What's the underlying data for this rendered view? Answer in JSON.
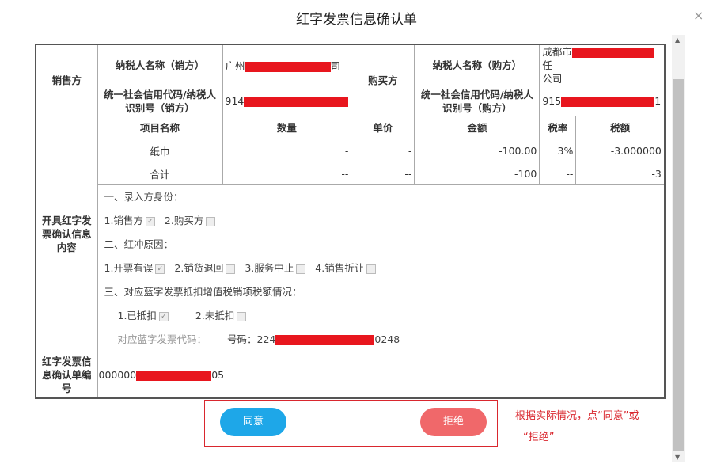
{
  "dialog": {
    "title": "红字发票信息确认单",
    "close": "×"
  },
  "seller": {
    "section": "销售方",
    "name_label": "纳税人名称（销方）",
    "name_prefix": "广州",
    "name_suffix": "司",
    "code_label": "统一社会信用代码/纳税人识别号（销方）",
    "code_prefix": "914",
    "code_suffix": ""
  },
  "buyer": {
    "section": "购买方",
    "name_label": "纳税人名称（购方）",
    "name_prefix": "成都市",
    "name_suffix": "任",
    "name_line2": "公司",
    "code_label": "统一社会信用代码/纳税人识别号（购方）",
    "code_prefix": "915",
    "code_suffix": "1"
  },
  "content": {
    "section": "开具红字发票确认信息内容",
    "columns": [
      "项目名称",
      "数量",
      "单价",
      "金额",
      "税率",
      "税额"
    ],
    "rows": [
      [
        "纸巾",
        "-",
        "-",
        "-100.00",
        "3%",
        "-3.000000"
      ],
      [
        "合计",
        "--",
        "--",
        "-100",
        "--",
        "-3"
      ]
    ],
    "identity_title": "一、录入方身份：",
    "identity": [
      {
        "label": "1.销售方",
        "checked": true
      },
      {
        "label": "2.购买方",
        "checked": false
      }
    ],
    "reason_title": "二、红冲原因：",
    "reasons": [
      {
        "label": "1.开票有误",
        "checked": true
      },
      {
        "label": "2.销货退回",
        "checked": false
      },
      {
        "label": "3.服务中止",
        "checked": false
      },
      {
        "label": "4.销售折让",
        "checked": false
      }
    ],
    "deduct_title": "三、对应蓝字发票抵扣增值税销项税额情况：",
    "deduct": [
      {
        "label": "1.已抵扣",
        "checked": true
      },
      {
        "label": "2.未抵扣",
        "checked": false
      }
    ],
    "blue_code_label": "对应蓝字发票代码：",
    "blue_number_label": "号码：",
    "blue_number_prefix": "224",
    "blue_number_suffix": "0248"
  },
  "number": {
    "label": "红字发票信息确认单编号",
    "prefix": "000000",
    "suffix": "05"
  },
  "actions": {
    "agree": "同意",
    "reject": "拒绝",
    "agree_color": "#1ea7e8",
    "reject_color": "#f0686a"
  },
  "annotation": {
    "line1": "根据实际情况，点“同意”或",
    "line2": "“拒绝”"
  }
}
